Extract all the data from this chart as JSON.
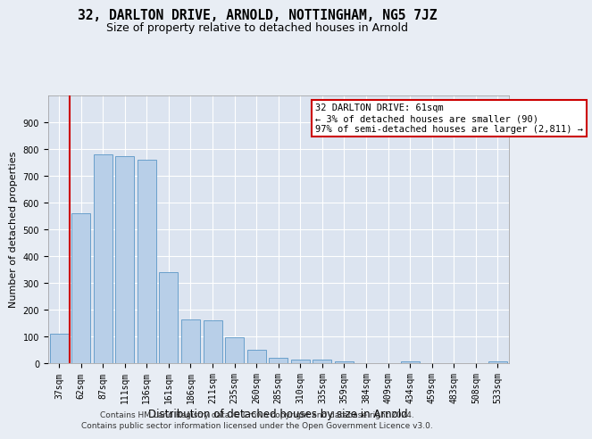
{
  "title1": "32, DARLTON DRIVE, ARNOLD, NOTTINGHAM, NG5 7JZ",
  "title2": "Size of property relative to detached houses in Arnold",
  "xlabel": "Distribution of detached houses by size in Arnold",
  "ylabel": "Number of detached properties",
  "categories": [
    "37sqm",
    "62sqm",
    "87sqm",
    "111sqm",
    "136sqm",
    "161sqm",
    "186sqm",
    "211sqm",
    "235sqm",
    "260sqm",
    "285sqm",
    "310sqm",
    "335sqm",
    "359sqm",
    "384sqm",
    "409sqm",
    "434sqm",
    "459sqm",
    "483sqm",
    "508sqm",
    "533sqm"
  ],
  "values": [
    110,
    560,
    780,
    775,
    760,
    340,
    163,
    160,
    97,
    50,
    20,
    14,
    12,
    8,
    0,
    0,
    6,
    0,
    0,
    0,
    8
  ],
  "bar_color": "#b8cfe8",
  "bar_edge_color": "#6aa0cc",
  "bg_color": "#e8edf4",
  "plot_bg_color": "#dce4f0",
  "grid_color": "#ffffff",
  "vline_x": 0.5,
  "vline_color": "#cc0000",
  "annotation_text": "32 DARLTON DRIVE: 61sqm\n← 3% of detached houses are smaller (90)\n97% of semi-detached houses are larger (2,811) →",
  "annotation_box_color": "#ffffff",
  "annotation_box_edge": "#cc0000",
  "footer1": "Contains HM Land Registry data © Crown copyright and database right 2024.",
  "footer2": "Contains public sector information licensed under the Open Government Licence v3.0.",
  "ylim": [
    0,
    1000
  ],
  "yticks": [
    0,
    100,
    200,
    300,
    400,
    500,
    600,
    700,
    800,
    900,
    1000
  ],
  "title1_fontsize": 10.5,
  "title2_fontsize": 9,
  "xlabel_fontsize": 8.5,
  "ylabel_fontsize": 8,
  "tick_fontsize": 7,
  "annotation_fontsize": 7.5,
  "footer_fontsize": 6.5
}
